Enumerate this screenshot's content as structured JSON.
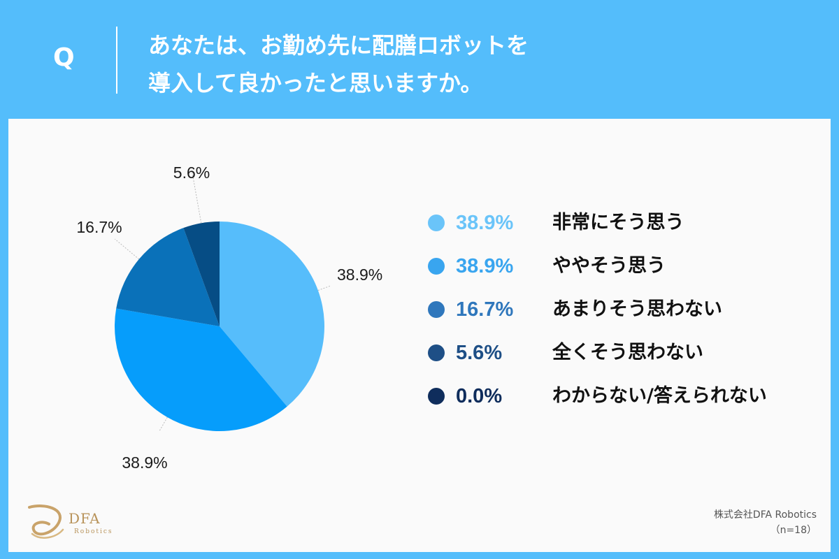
{
  "header": {
    "q_label": "Q",
    "question_line1": "あなたは、お勤め先に配膳ロボットを",
    "question_line2": "導入して良かったと思いますか。"
  },
  "chart_data": {
    "type": "pie",
    "categories": [
      "非常にそう思う",
      "ややそう思う",
      "あまりそう思わない",
      "全くそう思わない",
      "わからない/答えられない"
    ],
    "values": [
      38.9,
      38.9,
      16.7,
      5.6,
      0.0
    ],
    "value_labels": [
      "38.9%",
      "38.9%",
      "16.7%",
      "5.6%",
      "0.0%"
    ],
    "colors": [
      "#56bdfb",
      "#069dfb",
      "#0a71b9",
      "#064d85",
      "#0d3563"
    ],
    "legend_colors": [
      "#6ac4f9",
      "#39a5ef",
      "#2f77bc",
      "#1e4f86",
      "#0f2d5c"
    ],
    "legend_placement": "right"
  },
  "footer": {
    "logo_text": "DFA",
    "logo_subtext": "Robotics",
    "company": "株式会社DFA Robotics",
    "sample": "（n=18）"
  }
}
